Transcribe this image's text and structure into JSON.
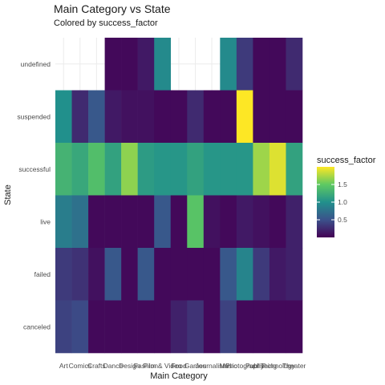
{
  "chart_data": {
    "type": "heatmap",
    "title": "Main Category vs State",
    "subtitle": "Colored by success_factor",
    "xlabel": "Main Category",
    "ylabel": "State",
    "x": [
      "Art",
      "Comics",
      "Crafts",
      "Dance",
      "Design",
      "Fashion",
      "Film & Video",
      "Food",
      "Games",
      "Journalism",
      "Music",
      "Photography",
      "Publishing",
      "Technology",
      "Theater"
    ],
    "y": [
      "undefined",
      "suspended",
      "successful",
      "live",
      "failed",
      "canceled"
    ],
    "values": [
      [
        null,
        null,
        null,
        0.05,
        0.05,
        0.15,
        0.95,
        null,
        null,
        null,
        0.95,
        0.35,
        0.05,
        0.05,
        0.25
      ],
      [
        1.0,
        0.25,
        0.55,
        0.15,
        0.1,
        0.1,
        0.05,
        0.05,
        0.25,
        0.05,
        0.05,
        2.0,
        0.05,
        0.05,
        0.05
      ],
      [
        1.3,
        1.2,
        1.4,
        1.15,
        1.65,
        1.1,
        1.05,
        1.05,
        1.15,
        1.05,
        1.05,
        1.05,
        1.7,
        1.9,
        1.15
      ],
      [
        0.85,
        0.75,
        0.05,
        0.05,
        0.05,
        0.05,
        0.55,
        0.05,
        1.45,
        0.1,
        0.05,
        0.15,
        0.1,
        0.05,
        0.2
      ],
      [
        0.35,
        0.3,
        0.1,
        0.55,
        0.05,
        0.55,
        0.05,
        0.05,
        0.05,
        0.05,
        0.55,
        0.9,
        0.35,
        0.15,
        0.2
      ],
      [
        0.4,
        0.45,
        0.05,
        0.05,
        0.05,
        0.05,
        0.05,
        0.2,
        0.3,
        0.05,
        0.4,
        0.05,
        0.05,
        0.05,
        0.05
      ]
    ],
    "colorbar": {
      "name": "success_factor",
      "ticks": [
        0.5,
        1.0,
        1.5
      ],
      "tick_labels": [
        "0.5",
        "1.0",
        "1.5"
      ],
      "range": [
        0.0,
        2.0
      ]
    },
    "colors": {
      "low": "#440154",
      "mid": "#21908c",
      "high": "#fde725"
    },
    "grid": true
  }
}
